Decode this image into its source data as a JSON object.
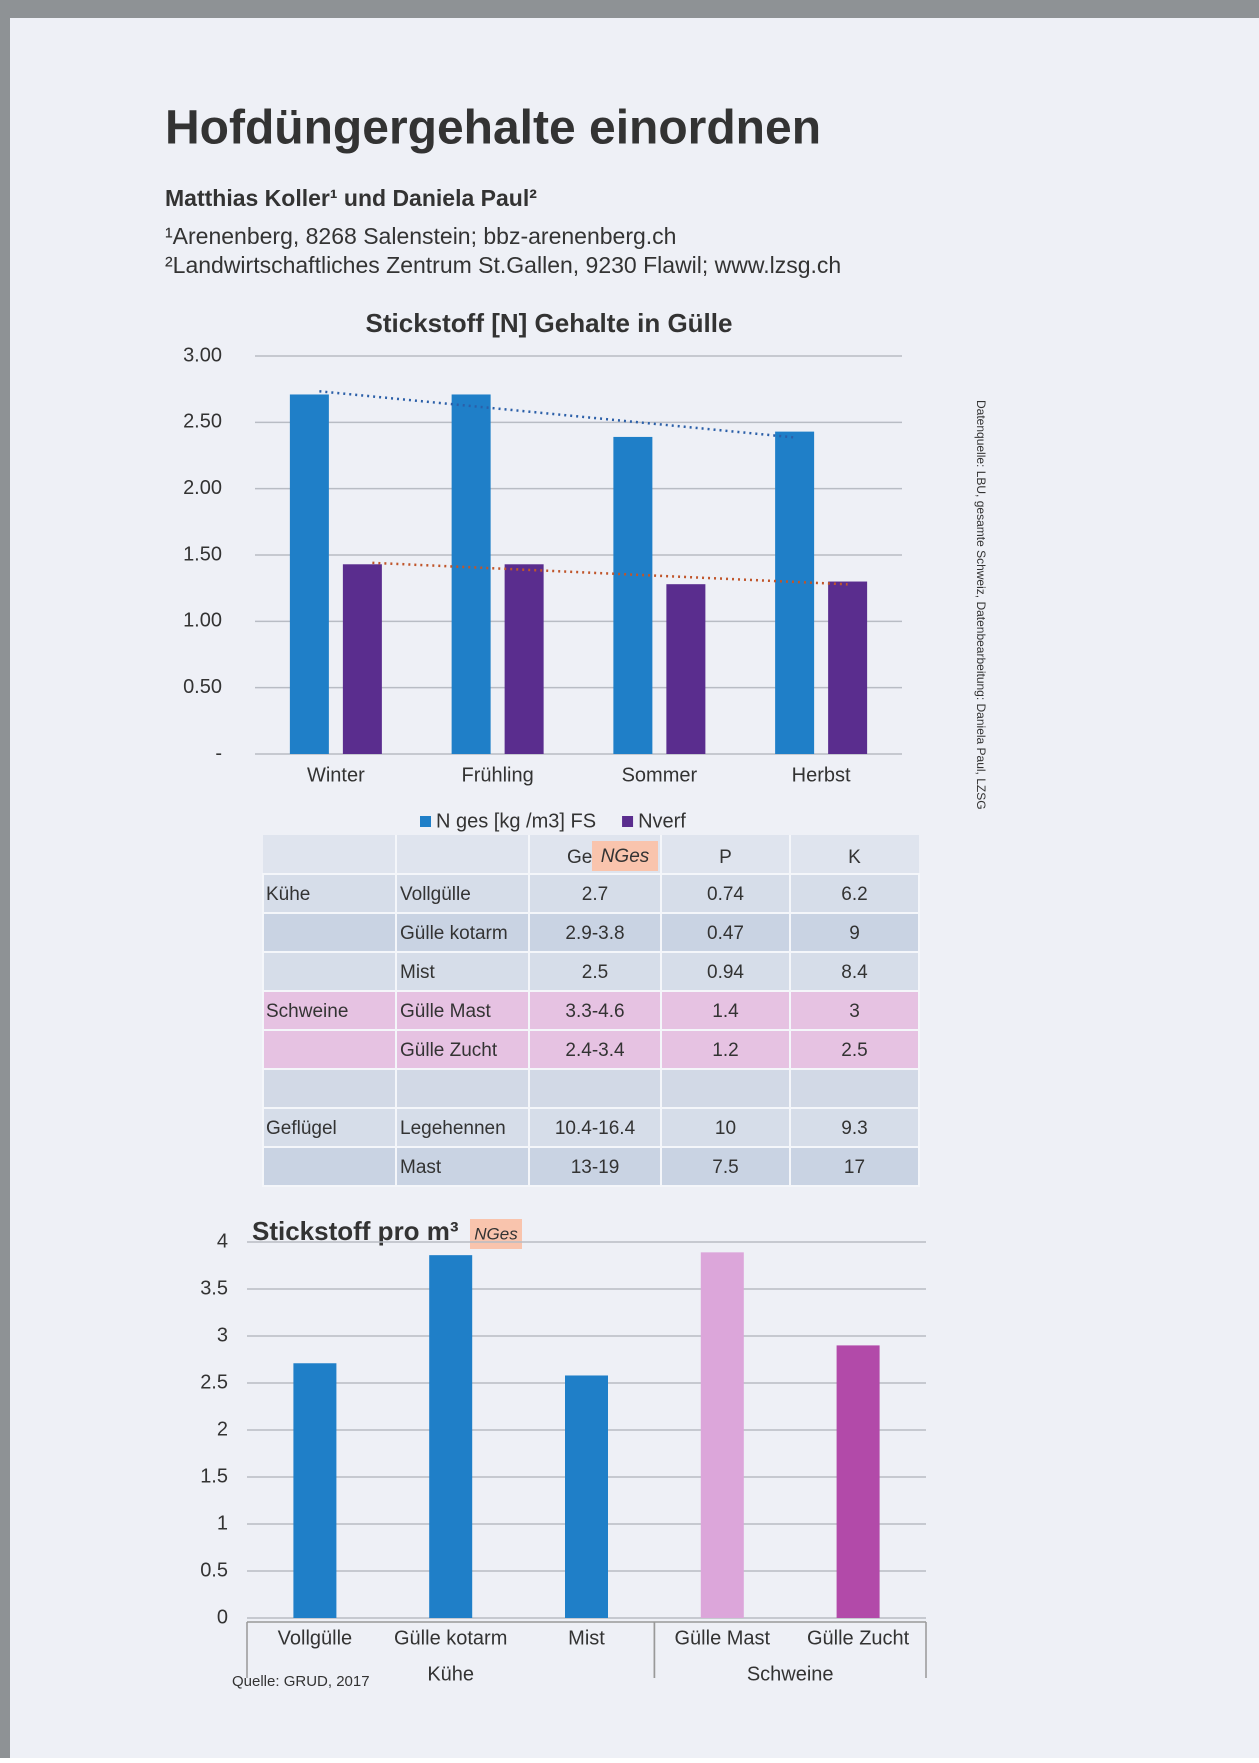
{
  "header": {
    "title": "Hofdüngergehalte einordnen",
    "authors": "Matthias Koller¹ und Daniela Paul²",
    "affiliations": [
      "¹Arenenberg, 8268 Salenstein; bbz-arenenberg.ch",
      "²Landwirtschaftliches Zentrum St.Gallen, 9230 Flawil; www.lzsg.ch"
    ]
  },
  "side_note": "Datenquelle: LBU, gesamte Schweiz, Datenbearbeitung: Daniela Paul, LZSG",
  "chart_data": [
    {
      "type": "bar",
      "title": "Stickstoff [N] Gehalte in Gülle",
      "categories": [
        "Winter",
        "Frühling",
        "Sommer",
        "Herbst"
      ],
      "series": [
        {
          "name": "N ges [kg /m3] FS",
          "color": "#1f7fc8",
          "values": [
            2.71,
            2.71,
            2.39,
            2.43
          ]
        },
        {
          "name": "Nverf",
          "color": "#5a2d8e",
          "values": [
            1.43,
            1.43,
            1.28,
            1.3
          ]
        }
      ],
      "ylim": [
        0,
        3
      ],
      "yticks": [
        {
          "value": 0,
          "label": "-"
        },
        {
          "value": 0.5,
          "label": "0.50"
        },
        {
          "value": 1,
          "label": "1.00"
        },
        {
          "value": 1.5,
          "label": "1.50"
        },
        {
          "value": 2,
          "label": "2.00"
        },
        {
          "value": 2.5,
          "label": "2.50"
        },
        {
          "value": 3,
          "label": "3.00"
        }
      ],
      "grid": true,
      "trendline": true,
      "legend": "bottom"
    },
    {
      "type": "bar",
      "title": "Stickstoff pro m³",
      "title_note": "NGes",
      "categories": [
        "Vollgülle",
        "Gülle kotarm",
        "Mist",
        "Gülle Mast",
        "Gülle Zucht"
      ],
      "category_groups": [
        "Kühe",
        "Kühe",
        "Kühe",
        "Schweine",
        "Schweine"
      ],
      "values": [
        2.71,
        3.86,
        2.58,
        3.89,
        2.9
      ],
      "colors": [
        "#1f7fc8",
        "#1f7fc8",
        "#1f7fc8",
        "#dca6da",
        "#b24aa9"
      ],
      "ylim": [
        0,
        4
      ],
      "yticks": [
        0,
        0.5,
        1,
        1.5,
        2,
        2.5,
        3,
        3.5,
        4
      ],
      "grid": true,
      "source": "Quelle: GRUD, 2017"
    }
  ],
  "table": {
    "header": [
      "Gehalt",
      "P",
      "K"
    ],
    "header_note": "NGes",
    "groups": [
      {
        "name": "Kühe",
        "rows": [
          [
            "Vollgülle",
            "2.7",
            "0.74",
            "6.2"
          ],
          [
            "Gülle kotarm",
            "2.9-3.8",
            "0.47",
            "9"
          ],
          [
            "Mist",
            "2.5",
            "0.94",
            "8.4"
          ]
        ]
      },
      {
        "name": "Schweine",
        "rows": [
          [
            "Gülle Mast",
            "3.3-4.6",
            "1.4",
            "3"
          ],
          [
            "Gülle Zucht",
            "2.4-3.4",
            "1.2",
            "2.5"
          ]
        ]
      },
      {
        "name": "Geflügel",
        "rows": [
          [
            "Legehennen",
            "10.4-16.4",
            "10",
            "9.3"
          ],
          [
            "Mast",
            "13-19",
            "7.5",
            "17"
          ]
        ]
      }
    ]
  }
}
